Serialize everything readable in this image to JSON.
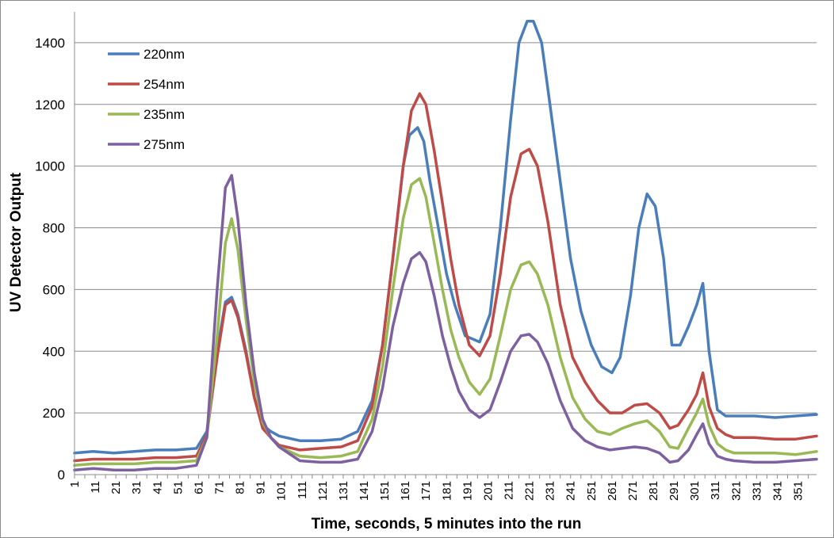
{
  "chart_data": {
    "type": "line",
    "title": "",
    "xlabel": "Time, seconds, 5 minutes into the run",
    "ylabel": "UV Detector Output",
    "xlim": [
      1,
      360
    ],
    "ylim": [
      0,
      1500
    ],
    "y_ticks": [
      0,
      200,
      400,
      600,
      800,
      1000,
      1200,
      1400
    ],
    "x_ticks": [
      1,
      11,
      21,
      31,
      41,
      51,
      61,
      71,
      81,
      91,
      101,
      111,
      121,
      131,
      141,
      151,
      161,
      171,
      181,
      191,
      201,
      211,
      221,
      231,
      241,
      251,
      261,
      271,
      281,
      291,
      301,
      311,
      321,
      331,
      341,
      351
    ],
    "grid": "horizontal",
    "legend_position": "top-left",
    "series": [
      {
        "name": "220nm",
        "color": "#4a7ebb",
        "x": [
          1,
          10,
          20,
          30,
          40,
          50,
          60,
          65,
          70,
          74,
          77,
          80,
          84,
          88,
          92,
          96,
          100,
          110,
          120,
          130,
          138,
          145,
          150,
          155,
          160,
          163,
          167,
          170,
          173,
          177,
          181,
          185,
          190,
          197,
          202,
          207,
          212,
          216,
          220,
          223,
          227,
          231,
          236,
          241,
          246,
          251,
          256,
          261,
          265,
          270,
          274,
          278,
          282,
          286,
          290,
          294,
          298,
          302,
          305,
          308,
          312,
          316,
          320,
          330,
          340,
          350,
          360
        ],
        "y": [
          70,
          75,
          70,
          75,
          80,
          80,
          85,
          140,
          400,
          560,
          575,
          520,
          400,
          250,
          160,
          140,
          125,
          110,
          110,
          115,
          140,
          240,
          420,
          700,
          1000,
          1100,
          1125,
          1080,
          950,
          800,
          650,
          550,
          450,
          430,
          520,
          800,
          1150,
          1400,
          1470,
          1470,
          1400,
          1200,
          950,
          700,
          530,
          420,
          350,
          330,
          380,
          580,
          800,
          910,
          870,
          700,
          420,
          420,
          480,
          550,
          620,
          400,
          210,
          190,
          190,
          190,
          185,
          190,
          195
        ]
      },
      {
        "name": "254nm",
        "color": "#be4b48",
        "x": [
          1,
          10,
          20,
          30,
          40,
          50,
          60,
          65,
          70,
          74,
          77,
          80,
          84,
          88,
          92,
          96,
          100,
          110,
          120,
          130,
          138,
          145,
          150,
          155,
          160,
          164,
          168,
          171,
          175,
          179,
          183,
          187,
          192,
          197,
          202,
          207,
          212,
          217,
          221,
          225,
          230,
          236,
          242,
          248,
          254,
          260,
          266,
          272,
          278,
          284,
          289,
          293,
          298,
          302,
          305,
          308,
          312,
          316,
          320,
          330,
          340,
          350,
          360
        ],
        "y": [
          45,
          50,
          50,
          50,
          55,
          55,
          60,
          130,
          380,
          550,
          565,
          510,
          390,
          250,
          150,
          120,
          95,
          80,
          85,
          90,
          110,
          220,
          420,
          700,
          1000,
          1180,
          1235,
          1200,
          1050,
          880,
          700,
          550,
          420,
          385,
          450,
          650,
          900,
          1040,
          1055,
          1000,
          820,
          550,
          380,
          300,
          240,
          200,
          200,
          225,
          230,
          200,
          150,
          160,
          210,
          260,
          330,
          220,
          150,
          130,
          120,
          120,
          115,
          115,
          125
        ]
      },
      {
        "name": "235nm",
        "color": "#98b954",
        "x": [
          1,
          10,
          20,
          30,
          40,
          50,
          60,
          65,
          70,
          74,
          77,
          80,
          84,
          88,
          92,
          96,
          100,
          110,
          120,
          130,
          138,
          145,
          150,
          155,
          160,
          164,
          168,
          171,
          175,
          179,
          183,
          187,
          192,
          197,
          202,
          207,
          212,
          217,
          221,
          225,
          230,
          236,
          242,
          248,
          254,
          260,
          266,
          272,
          278,
          284,
          289,
          293,
          298,
          302,
          305,
          308,
          312,
          316,
          320,
          330,
          340,
          350,
          360
        ],
        "y": [
          30,
          35,
          35,
          35,
          40,
          40,
          45,
          120,
          450,
          750,
          830,
          730,
          500,
          300,
          170,
          120,
          90,
          60,
          55,
          60,
          75,
          180,
          350,
          600,
          830,
          940,
          960,
          900,
          750,
          600,
          470,
          380,
          300,
          260,
          310,
          450,
          600,
          680,
          690,
          650,
          550,
          380,
          250,
          180,
          140,
          130,
          150,
          165,
          175,
          140,
          90,
          85,
          150,
          200,
          245,
          160,
          100,
          80,
          70,
          70,
          70,
          65,
          75
        ]
      },
      {
        "name": "275nm",
        "color": "#7d60a0",
        "x": [
          1,
          10,
          20,
          30,
          40,
          50,
          60,
          65,
          70,
          74,
          77,
          80,
          84,
          88,
          92,
          96,
          100,
          110,
          120,
          130,
          138,
          145,
          150,
          155,
          160,
          164,
          168,
          171,
          175,
          179,
          183,
          187,
          192,
          197,
          202,
          207,
          212,
          217,
          221,
          225,
          230,
          236,
          242,
          248,
          254,
          260,
          266,
          272,
          278,
          284,
          289,
          293,
          298,
          302,
          305,
          308,
          312,
          316,
          320,
          330,
          340,
          350,
          360
        ],
        "y": [
          15,
          20,
          15,
          15,
          20,
          20,
          30,
          120,
          600,
          930,
          970,
          830,
          550,
          330,
          180,
          120,
          90,
          45,
          40,
          40,
          50,
          140,
          280,
          480,
          620,
          700,
          720,
          690,
          580,
          450,
          350,
          270,
          210,
          185,
          210,
          300,
          400,
          450,
          455,
          430,
          360,
          240,
          150,
          110,
          90,
          80,
          85,
          90,
          85,
          70,
          40,
          45,
          80,
          130,
          165,
          100,
          60,
          50,
          45,
          40,
          40,
          45,
          50
        ]
      }
    ]
  }
}
